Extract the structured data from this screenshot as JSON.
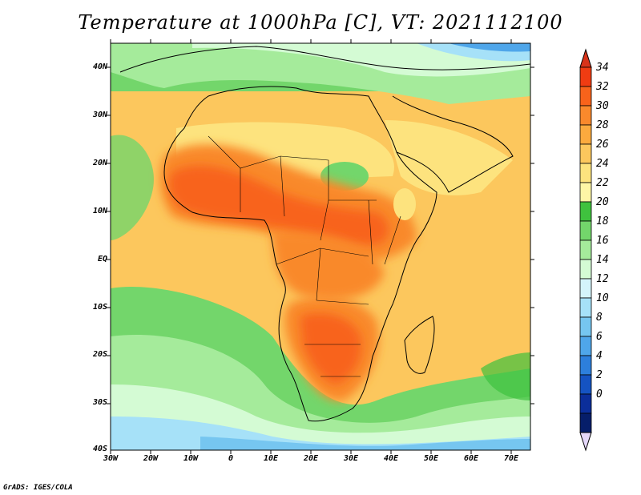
{
  "title": "Temperature at 1000hPa [C], VT: 2021112100",
  "credit": "GrADS: IGES/COLA",
  "latitude_labels": [
    "40N",
    "30N",
    "20N",
    "10N",
    "EQ",
    "10S",
    "20S",
    "30S",
    "40S"
  ],
  "longitude_labels": [
    "30W",
    "20W",
    "10W",
    "0",
    "10E",
    "20E",
    "30E",
    "40E",
    "50E",
    "60E",
    "70E"
  ],
  "colorbar": {
    "labels": [
      "34",
      "32",
      "30",
      "28",
      "26",
      "24",
      "22",
      "20",
      "18",
      "16",
      "14",
      "12",
      "10",
      "8",
      "6",
      "4",
      "2",
      "0"
    ],
    "colors": [
      "#f03c12",
      "#f8631b",
      "#f9892c",
      "#fbaa3e",
      "#fcc75d",
      "#fde37e",
      "#fef6a6",
      "#3fc23e",
      "#73d66b",
      "#a5eb9b",
      "#d4fbd4",
      "#d4f4fb",
      "#a6e1f8",
      "#76c6f0",
      "#4fa6ea",
      "#2d7fdc",
      "#1553c2",
      "#0b2e9a",
      "#061e6a"
    ],
    "top_color": "#d8331a",
    "bottom_color": "#e4d7f9"
  }
}
